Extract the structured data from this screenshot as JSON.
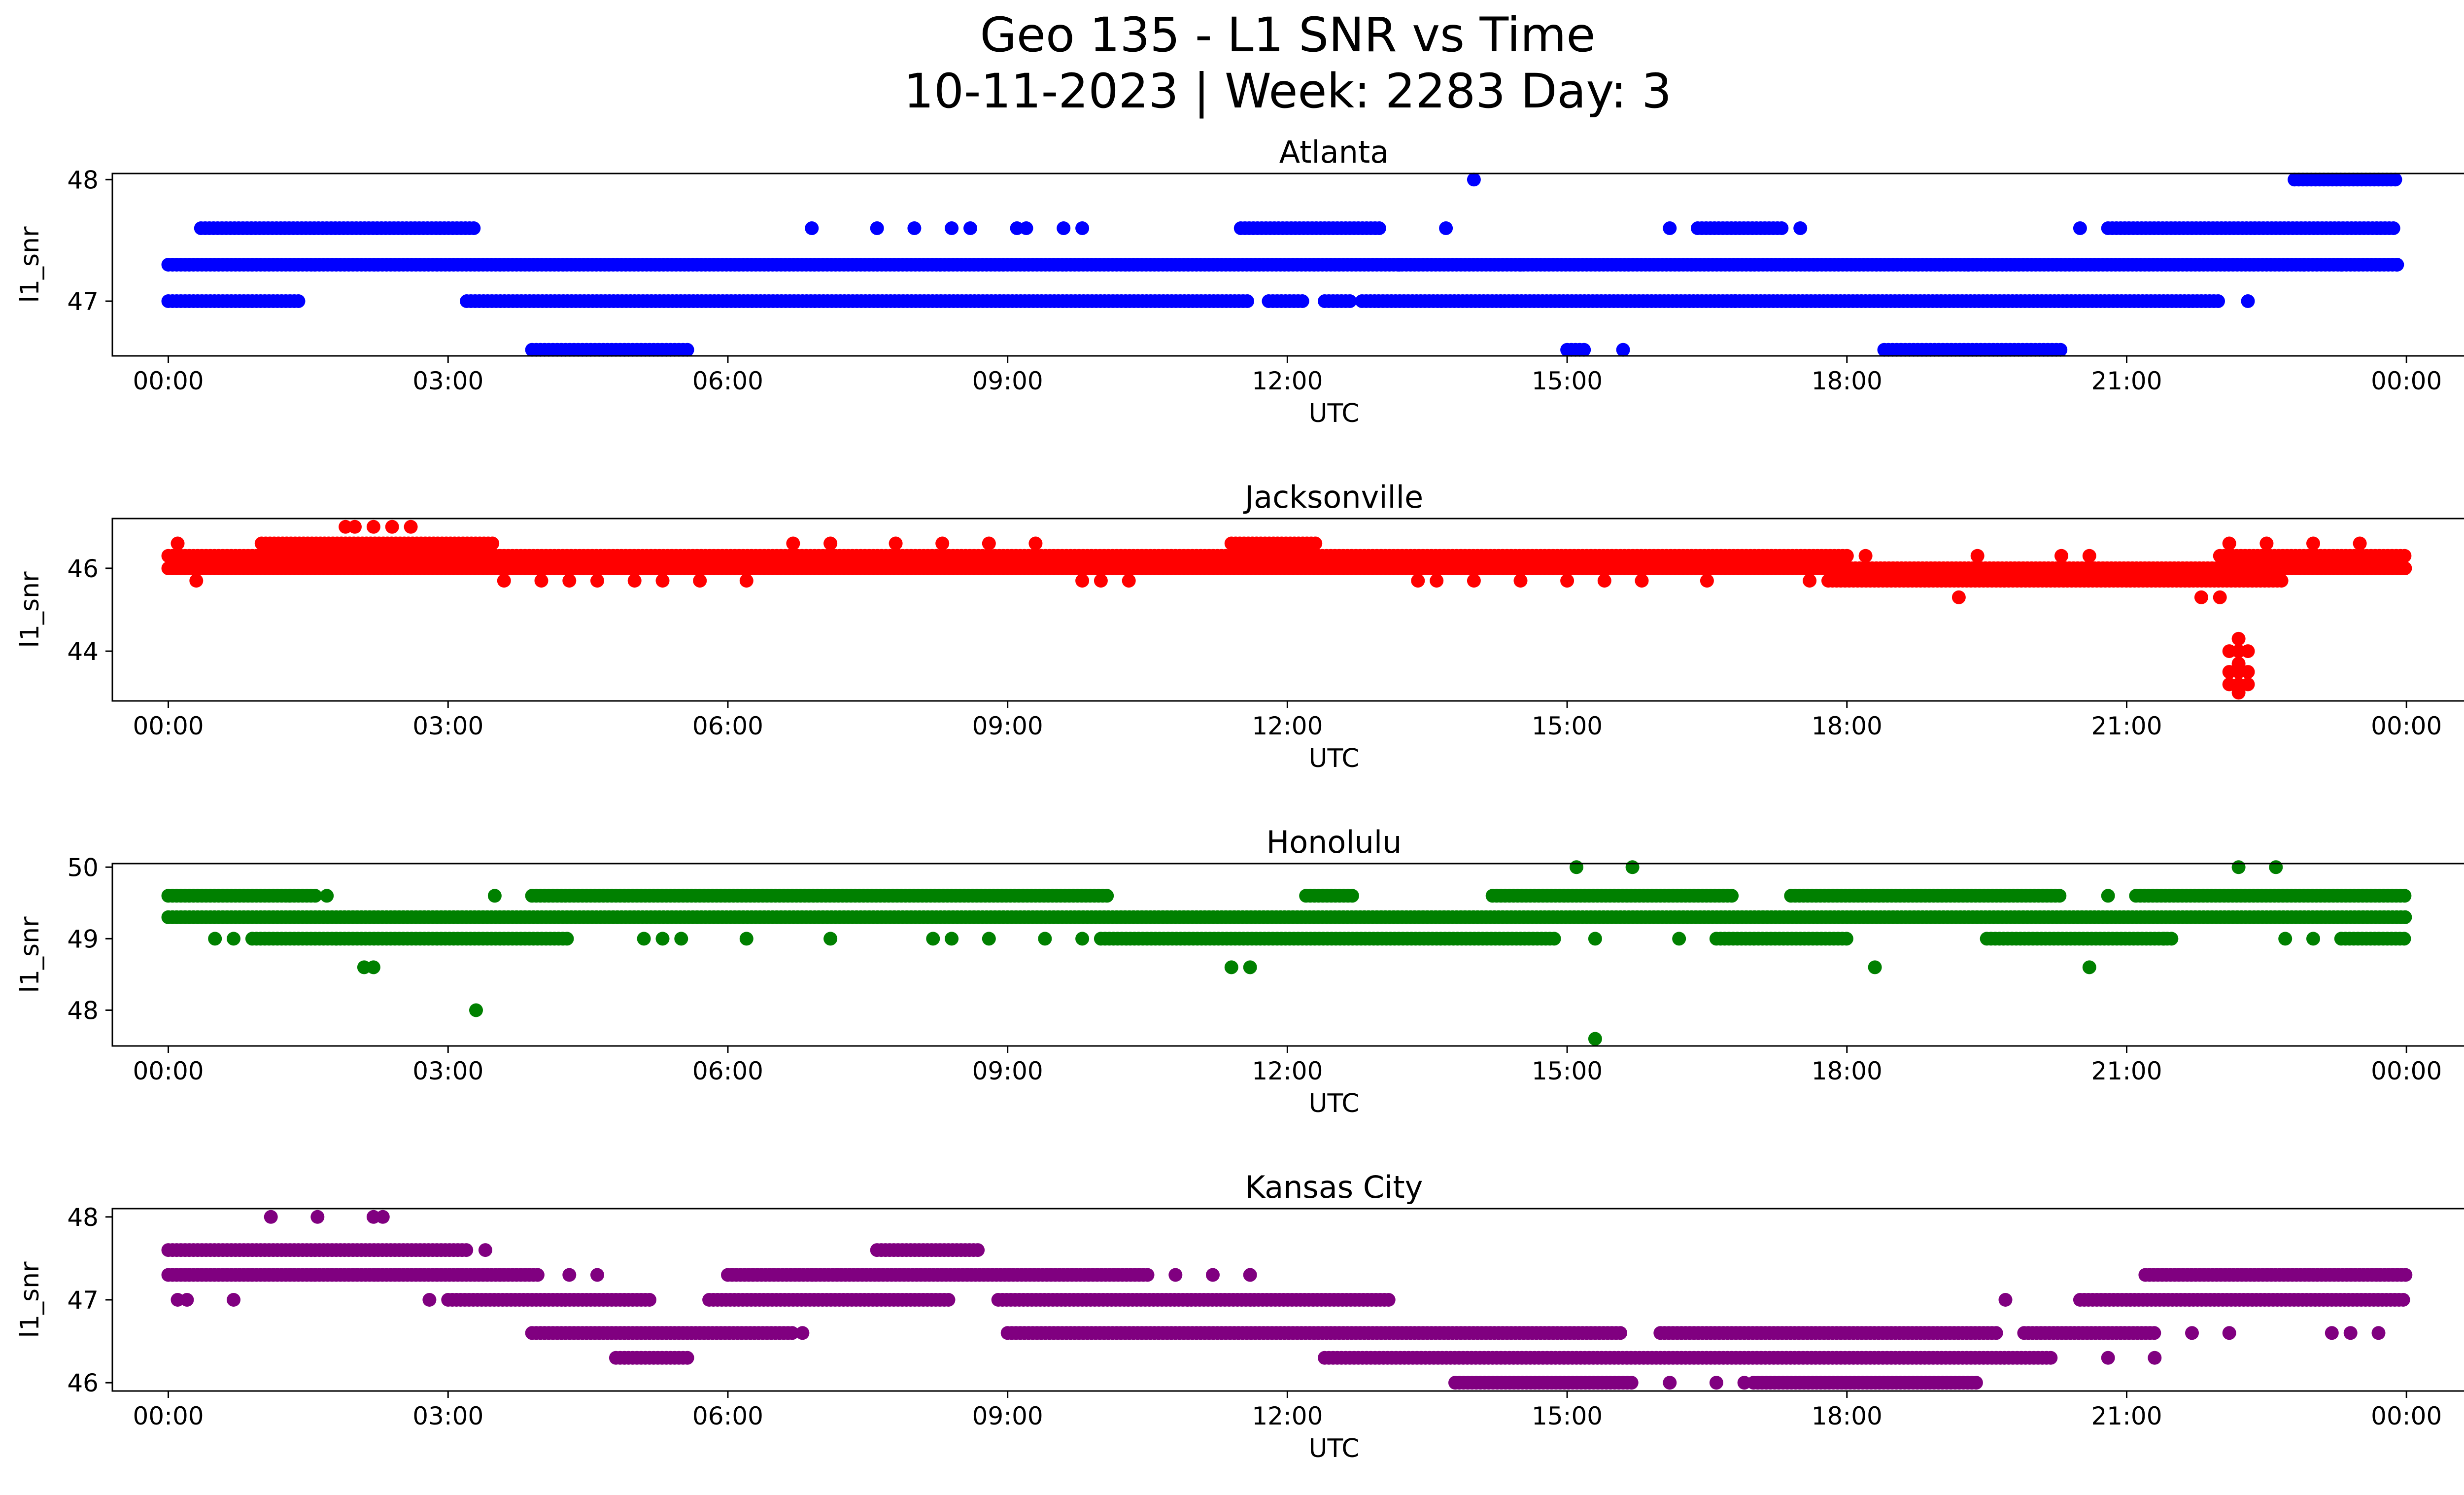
{
  "figure": {
    "title_line1": "Geo 135 - L1 SNR vs Time",
    "title_line2": "10-11-2023 | Week: 2283 Day: 3"
  },
  "chart_data": [
    {
      "type": "scatter",
      "title": "Atlanta",
      "xlabel": "UTC",
      "ylabel": "l1_snr",
      "color": "#0000ff",
      "xlim": [
        -0.6,
        25.6
      ],
      "ylim": [
        46.55,
        48.05
      ],
      "yticks": [
        47,
        48
      ],
      "xticks": [
        "00:00",
        "03:00",
        "06:00",
        "09:00",
        "12:00",
        "15:00",
        "18:00",
        "21:00",
        "00:00"
      ],
      "bands": [
        {
          "y": 47.3,
          "segments": [
            [
              0.0,
              23.9
            ]
          ]
        },
        {
          "y": 47.0,
          "segments": [
            [
              0.0,
              1.4
            ],
            [
              3.2,
              11.6
            ],
            [
              11.8,
              12.2
            ],
            [
              12.4,
              12.7
            ],
            [
              12.8,
              22.0
            ]
          ]
        },
        {
          "y": 47.6,
          "segments": [
            [
              0.35,
              3.3
            ],
            [
              11.5,
              13.0
            ],
            [
              16.4,
              17.3
            ],
            [
              20.8,
              23.9
            ]
          ]
        },
        {
          "y": 46.6,
          "segments": [
            [
              3.9,
              5.6
            ],
            [
              15.0,
              15.2
            ],
            [
              18.4,
              20.3
            ]
          ]
        },
        {
          "y": 48.0,
          "segments": [
            [
              22.8,
              23.9
            ]
          ]
        }
      ],
      "points": [
        [
          22.3,
          47.0
        ],
        [
          22.9,
          47.3
        ],
        [
          23.3,
          47.3
        ],
        [
          23.9,
          47.3
        ],
        [
          6.9,
          47.6
        ],
        [
          7.6,
          47.6
        ],
        [
          8.0,
          47.6
        ],
        [
          8.4,
          47.6
        ],
        [
          8.6,
          47.6
        ],
        [
          9.1,
          47.6
        ],
        [
          9.2,
          47.6
        ],
        [
          9.6,
          47.6
        ],
        [
          9.8,
          47.6
        ],
        [
          13.7,
          47.6
        ],
        [
          14.0,
          48.0
        ],
        [
          15.6,
          46.6
        ],
        [
          16.1,
          47.6
        ],
        [
          17.5,
          47.6
        ],
        [
          13.2,
          47.3
        ],
        [
          14.5,
          47.3
        ],
        [
          16.8,
          47.0
        ],
        [
          19.3,
          47.3
        ],
        [
          20.5,
          47.6
        ]
      ]
    },
    {
      "type": "scatter",
      "title": "Jacksonville",
      "xlabel": "UTC",
      "ylabel": "l1_snr",
      "color": "#ff0000",
      "xlim": [
        -0.6,
        25.6
      ],
      "ylim": [
        42.8,
        47.2
      ],
      "yticks": [
        44,
        46
      ],
      "xticks": [
        "00:00",
        "03:00",
        "06:00",
        "09:00",
        "12:00",
        "15:00",
        "18:00",
        "21:00",
        "00:00"
      ],
      "bands": [
        {
          "y": 46.3,
          "segments": [
            [
              0.0,
              18.0
            ],
            [
              22.0,
              24.0
            ]
          ]
        },
        {
          "y": 46.0,
          "segments": [
            [
              0.0,
              24.0
            ]
          ]
        },
        {
          "y": 46.6,
          "segments": [
            [
              1.0,
              3.5
            ],
            [
              11.4,
              12.3
            ]
          ]
        },
        {
          "y": 45.7,
          "segments": [
            [
              17.8,
              22.7
            ]
          ]
        }
      ],
      "points": [
        [
          0.1,
          46.6
        ],
        [
          0.3,
          45.7
        ],
        [
          1.8,
          46.0
        ],
        [
          1.9,
          47.0
        ],
        [
          2.0,
          47.0
        ],
        [
          2.2,
          47.0
        ],
        [
          2.4,
          47.0
        ],
        [
          2.6,
          47.0
        ],
        [
          3.6,
          45.7
        ],
        [
          4.0,
          45.7
        ],
        [
          4.3,
          45.7
        ],
        [
          4.6,
          45.7
        ],
        [
          5.0,
          45.7
        ],
        [
          5.3,
          45.7
        ],
        [
          5.7,
          45.7
        ],
        [
          6.2,
          45.7
        ],
        [
          6.7,
          46.6
        ],
        [
          7.1,
          46.6
        ],
        [
          7.8,
          46.6
        ],
        [
          8.3,
          46.6
        ],
        [
          8.8,
          46.6
        ],
        [
          9.3,
          46.6
        ],
        [
          9.8,
          45.7
        ],
        [
          10.0,
          45.7
        ],
        [
          10.3,
          45.7
        ],
        [
          13.4,
          45.7
        ],
        [
          13.6,
          45.7
        ],
        [
          14.0,
          45.7
        ],
        [
          14.5,
          45.7
        ],
        [
          15.0,
          45.7
        ],
        [
          15.4,
          45.7
        ],
        [
          15.8,
          45.7
        ],
        [
          16.5,
          45.7
        ],
        [
          17.6,
          45.7
        ],
        [
          18.2,
          46.3
        ],
        [
          19.2,
          45.3
        ],
        [
          19.4,
          46.3
        ],
        [
          20.3,
          46.3
        ],
        [
          20.6,
          46.3
        ],
        [
          21.8,
          45.3
        ],
        [
          22.0,
          45.3
        ],
        [
          22.2,
          44.3
        ],
        [
          22.2,
          44.0
        ],
        [
          22.2,
          43.7
        ],
        [
          22.2,
          43.5
        ],
        [
          22.2,
          43.2
        ],
        [
          22.2,
          43.0
        ],
        [
          22.1,
          44.0
        ],
        [
          22.1,
          43.5
        ],
        [
          22.1,
          43.2
        ],
        [
          22.3,
          44.0
        ],
        [
          22.3,
          43.5
        ],
        [
          22.3,
          43.2
        ],
        [
          22.1,
          46.6
        ],
        [
          22.5,
          46.6
        ],
        [
          23.0,
          46.6
        ],
        [
          23.5,
          46.6
        ]
      ]
    },
    {
      "type": "scatter",
      "title": "Honolulu",
      "xlabel": "UTC",
      "ylabel": "l1_snr",
      "color": "#008000",
      "xlim": [
        -0.6,
        25.6
      ],
      "ylim": [
        47.5,
        50.05
      ],
      "yticks": [
        48,
        49,
        50
      ],
      "xticks": [
        "00:00",
        "03:00",
        "06:00",
        "09:00",
        "12:00",
        "15:00",
        "18:00",
        "21:00",
        "00:00"
      ],
      "bands": [
        {
          "y": 49.3,
          "segments": [
            [
              0.0,
              24.0
            ]
          ]
        },
        {
          "y": 49.6,
          "segments": [
            [
              0.0,
              1.6
            ],
            [
              3.9,
              10.1
            ],
            [
              12.2,
              12.7
            ],
            [
              14.2,
              16.8
            ],
            [
              17.4,
              20.3
            ],
            [
              21.1,
              24.0
            ]
          ]
        },
        {
          "y": 49.0,
          "segments": [
            [
              0.9,
              4.3
            ],
            [
              10.0,
              14.9
            ],
            [
              16.6,
              18.0
            ],
            [
              19.5,
              21.5
            ],
            [
              23.3,
              24.0
            ]
          ]
        }
      ],
      "points": [
        [
          0.5,
          49.0
        ],
        [
          0.7,
          49.0
        ],
        [
          1.3,
          49.6
        ],
        [
          1.7,
          49.6
        ],
        [
          1.8,
          49.0
        ],
        [
          2.1,
          48.6
        ],
        [
          2.2,
          48.6
        ],
        [
          3.3,
          48.0
        ],
        [
          3.5,
          49.6
        ],
        [
          5.1,
          49.0
        ],
        [
          5.3,
          49.0
        ],
        [
          5.5,
          49.0
        ],
        [
          6.2,
          49.0
        ],
        [
          7.1,
          49.0
        ],
        [
          8.2,
          49.0
        ],
        [
          8.4,
          49.0
        ],
        [
          8.8,
          49.0
        ],
        [
          9.4,
          49.0
        ],
        [
          9.8,
          49.0
        ],
        [
          11.4,
          48.6
        ],
        [
          11.6,
          48.6
        ],
        [
          15.1,
          50.0
        ],
        [
          15.3,
          47.6
        ],
        [
          15.3,
          49.0
        ],
        [
          15.7,
          50.0
        ],
        [
          16.2,
          49.0
        ],
        [
          18.3,
          48.6
        ],
        [
          20.6,
          48.6
        ],
        [
          20.8,
          49.6
        ],
        [
          22.2,
          50.0
        ],
        [
          22.6,
          50.0
        ],
        [
          22.7,
          49.0
        ],
        [
          23.0,
          49.0
        ],
        [
          21.4,
          49.0
        ]
      ]
    },
    {
      "type": "scatter",
      "title": "Kansas City",
      "xlabel": "UTC",
      "ylabel": "l1_snr",
      "color": "#800080",
      "xlim": [
        -0.6,
        25.6
      ],
      "ylim": [
        45.9,
        48.1
      ],
      "yticks": [
        46,
        47,
        48
      ],
      "xticks": [
        "00:00",
        "03:00",
        "06:00",
        "09:00",
        "12:00",
        "15:00",
        "18:00",
        "21:00",
        "00:00"
      ],
      "bands": [
        {
          "y": 47.6,
          "segments": [
            [
              0.0,
              3.2
            ],
            [
              7.6,
              8.7
            ]
          ]
        },
        {
          "y": 47.3,
          "segments": [
            [
              0.0,
              4.0
            ],
            [
              6.0,
              10.5
            ],
            [
              21.2,
              24.0
            ]
          ]
        },
        {
          "y": 47.0,
          "segments": [
            [
              3.0,
              5.2
            ],
            [
              5.8,
              8.4
            ],
            [
              8.9,
              13.1
            ],
            [
              20.5,
              24.0
            ]
          ]
        },
        {
          "y": 46.6,
          "segments": [
            [
              3.9,
              6.7
            ],
            [
              9.0,
              15.6
            ],
            [
              16.0,
              19.6
            ],
            [
              19.9,
              21.3
            ]
          ]
        },
        {
          "y": 46.3,
          "segments": [
            [
              4.8,
              5.6
            ],
            [
              12.4,
              20.2
            ]
          ]
        },
        {
          "y": 46.0,
          "segments": [
            [
              13.8,
              15.7
            ],
            [
              17.0,
              19.4
            ]
          ]
        }
      ],
      "points": [
        [
          0.1,
          47.0
        ],
        [
          0.2,
          47.0
        ],
        [
          0.7,
          47.0
        ],
        [
          1.1,
          48.0
        ],
        [
          1.6,
          48.0
        ],
        [
          2.2,
          48.0
        ],
        [
          2.3,
          48.0
        ],
        [
          2.8,
          47.0
        ],
        [
          3.4,
          47.6
        ],
        [
          4.3,
          47.3
        ],
        [
          4.6,
          47.3
        ],
        [
          6.8,
          46.6
        ],
        [
          10.8,
          47.3
        ],
        [
          11.2,
          47.3
        ],
        [
          11.6,
          47.3
        ],
        [
          16.1,
          46.0
        ],
        [
          16.6,
          46.0
        ],
        [
          16.9,
          46.0
        ],
        [
          19.7,
          47.0
        ],
        [
          20.8,
          46.3
        ],
        [
          21.3,
          46.3
        ],
        [
          21.7,
          46.6
        ],
        [
          22.1,
          46.6
        ],
        [
          23.2,
          46.6
        ],
        [
          23.4,
          46.6
        ],
        [
          23.7,
          46.6
        ]
      ]
    }
  ]
}
